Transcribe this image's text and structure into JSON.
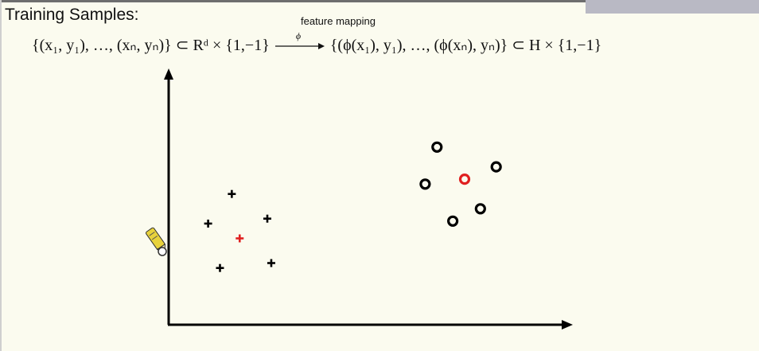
{
  "slide": {
    "title": "Training Samples:",
    "mapping_caption": "feature mapping",
    "formula": {
      "lhs": "{(x₁, y₁), …, (xₙ, yₙ)} ⊂ Rᵈ × {1,−1}",
      "arrow_label": "ϕ",
      "rhs": "{(ϕ(x₁), y₁), …, (ϕ(xₙ), yₙ)} ⊂ H × {1,−1}"
    }
  },
  "chart_data": {
    "type": "scatter",
    "title": "",
    "xlabel": "",
    "ylabel": "",
    "xlim": [
      0,
      100
    ],
    "ylim": [
      0,
      100
    ],
    "grid": false,
    "series": [
      {
        "marker": "plus",
        "color": "#000000",
        "points": [
          [
            16,
            53
          ],
          [
            10,
            41
          ],
          [
            25,
            43
          ],
          [
            13,
            23
          ],
          [
            26,
            25
          ]
        ]
      },
      {
        "marker": "plus",
        "color": "#e02020",
        "points": [
          [
            18,
            35
          ]
        ]
      },
      {
        "marker": "circle",
        "color": "#000000",
        "points": [
          [
            68,
            72
          ],
          [
            65,
            57
          ],
          [
            83,
            64
          ],
          [
            72,
            42
          ],
          [
            79,
            47
          ]
        ]
      },
      {
        "marker": "circle",
        "color": "#e02020",
        "points": [
          [
            75,
            59
          ]
        ]
      }
    ]
  },
  "cursor": {
    "icon": "pen-cursor-icon",
    "color": "#e8d23c"
  }
}
